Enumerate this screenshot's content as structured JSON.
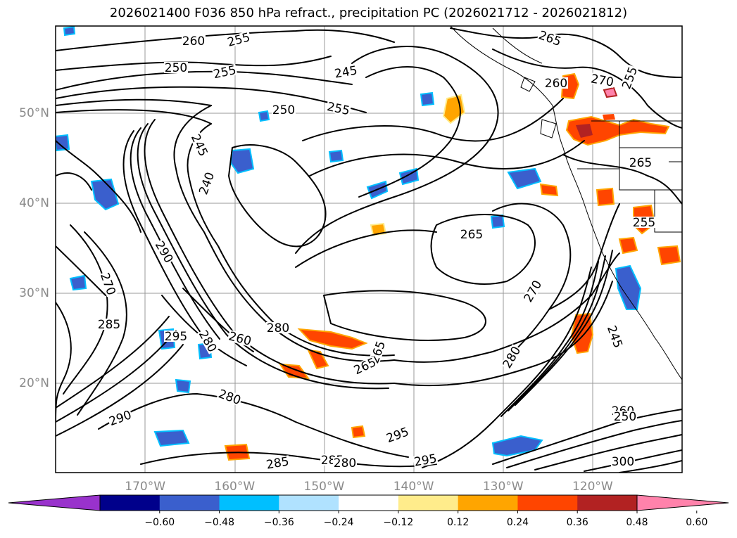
{
  "title": "2026021400 F036 850 hPa refract., precipitation PC (2026021712 - 2026021812)",
  "map": {
    "lat_labels": [
      {
        "lat": 50,
        "text": "50°N"
      },
      {
        "lat": 40,
        "text": "40°N"
      },
      {
        "lat": 30,
        "text": "30°N"
      },
      {
        "lat": 20,
        "text": "20°N"
      }
    ],
    "lon_labels": [
      {
        "lon": -170,
        "text": "170°W"
      },
      {
        "lon": -160,
        "text": "160°W"
      },
      {
        "lon": -150,
        "text": "150°W"
      },
      {
        "lon": -140,
        "text": "140°W"
      },
      {
        "lon": -130,
        "text": "130°W"
      },
      {
        "lon": -120,
        "text": "120°W"
      }
    ],
    "contour_labels": [
      "260",
      "255",
      "250",
      "255",
      "245",
      "250",
      "255",
      "265",
      "260",
      "270",
      "255",
      "245",
      "240",
      "265",
      "290",
      "270",
      "265",
      "280",
      "295",
      "285",
      "280",
      "260",
      "265",
      "270",
      "280",
      "290",
      "295",
      "280",
      "285",
      "285",
      "280",
      "295",
      "260",
      "250",
      "300",
      "265",
      "255",
      "245"
    ]
  },
  "colorbar": {
    "colors": [
      "#9932cc",
      "#00008b",
      "#3a5fcd",
      "#00bfff",
      "#b0e2ff",
      "#ffffff",
      "#ffec8b",
      "#ffa500",
      "#ff4500",
      "#b22222",
      "#ff82ab"
    ],
    "tick_labels": [
      "−0.60",
      "−0.48",
      "−0.36",
      "−0.24",
      "−0.12",
      "0.12",
      "0.24",
      "0.36",
      "0.48",
      "0.60"
    ]
  }
}
